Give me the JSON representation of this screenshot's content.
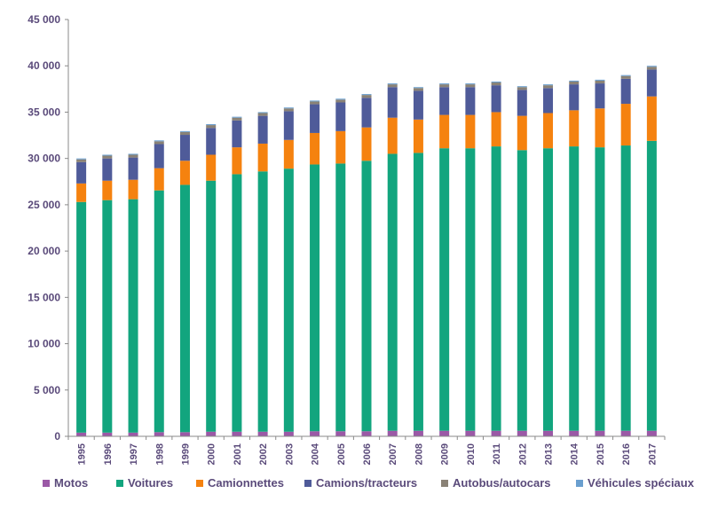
{
  "chart_data": {
    "type": "bar",
    "stacked": true,
    "title": "",
    "xlabel": "",
    "ylabel": "",
    "ylim": [
      0,
      45000
    ],
    "y_ticks": [
      0,
      5000,
      10000,
      15000,
      20000,
      25000,
      30000,
      35000,
      40000,
      45000
    ],
    "y_tick_labels": [
      "0",
      "5 000",
      "10 000",
      "15 000",
      "20 000",
      "25 000",
      "30 000",
      "35 000",
      "40 000",
      "45 000"
    ],
    "grid": false,
    "legend_position": "bottom",
    "categories": [
      "1995",
      "1996",
      "1997",
      "1998",
      "1999",
      "2000",
      "2001",
      "2002",
      "2003",
      "2004",
      "2005",
      "2006",
      "2007",
      "2008",
      "2009",
      "2010",
      "2011",
      "2012",
      "2013",
      "2014",
      "2015",
      "2016",
      "2017"
    ],
    "series": [
      {
        "name": "Motos",
        "color": "#9b59a6",
        "values": [
          400,
          400,
          400,
          450,
          450,
          500,
          500,
          500,
          500,
          550,
          550,
          550,
          600,
          600,
          600,
          600,
          600,
          600,
          600,
          600,
          600,
          600,
          600
        ]
      },
      {
        "name": "Voitures",
        "color": "#12a57e",
        "values": [
          24900,
          25100,
          25200,
          26100,
          26700,
          27100,
          27800,
          28100,
          28400,
          28800,
          28900,
          29200,
          29900,
          30000,
          30500,
          30500,
          30700,
          30300,
          30500,
          30700,
          30600,
          30800,
          31300
        ]
      },
      {
        "name": "Camionnettes",
        "color": "#f5820f",
        "values": [
          2000,
          2100,
          2100,
          2400,
          2600,
          2800,
          2900,
          3000,
          3100,
          3400,
          3500,
          3600,
          3900,
          3600,
          3600,
          3600,
          3700,
          3700,
          3800,
          3900,
          4200,
          4500,
          4800
        ]
      },
      {
        "name": "Camions/tracteurs",
        "color": "#4f5b99",
        "values": [
          2300,
          2400,
          2400,
          2600,
          2800,
          2900,
          2900,
          3000,
          3100,
          3100,
          3100,
          3200,
          3300,
          3100,
          3000,
          3000,
          2900,
          2800,
          2700,
          2800,
          2700,
          2700,
          2900
        ]
      },
      {
        "name": "Autobus/autocars",
        "color": "#8a8276",
        "values": [
          300,
          300,
          300,
          300,
          300,
          300,
          300,
          300,
          300,
          300,
          300,
          300,
          300,
          300,
          300,
          300,
          300,
          300,
          300,
          300,
          300,
          300,
          300
        ]
      },
      {
        "name": "Véhicules spéciaux",
        "color": "#6a9fcf",
        "values": [
          100,
          100,
          100,
          100,
          100,
          100,
          100,
          100,
          100,
          100,
          100,
          100,
          100,
          100,
          100,
          100,
          100,
          100,
          100,
          100,
          100,
          100,
          100
        ]
      }
    ]
  }
}
